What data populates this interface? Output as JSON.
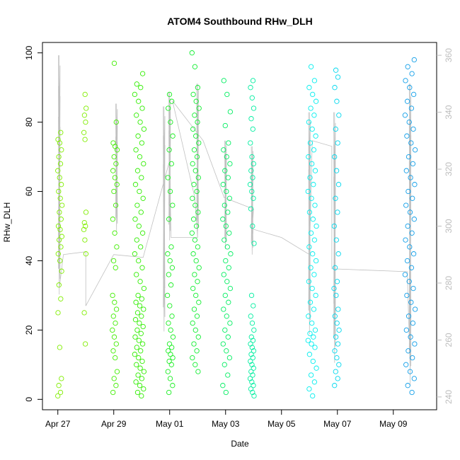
{
  "chart_data": {
    "type": "scatter",
    "title": "ATOM4 Southbound RHw_DLH",
    "xlabel": "Date",
    "ylabel": "RHw_DLH",
    "x_ticks": [
      "Apr 27",
      "Apr 29",
      "May 01",
      "May 03",
      "May 05",
      "May 07",
      "May 09"
    ],
    "x_tick_days": [
      0,
      2,
      4,
      6,
      8,
      10,
      12
    ],
    "xlim_days": [
      -0.55,
      13.55
    ],
    "x_day0": "Apr 27",
    "y_ticks": [
      0,
      20,
      40,
      60,
      80,
      100
    ],
    "ylim": [
      -3,
      103
    ],
    "y2_ticks": [
      240,
      260,
      280,
      300,
      320,
      340,
      360
    ],
    "y2lim": [
      235.5,
      364.5
    ],
    "grid": false,
    "colors": {
      "axis": "#000000",
      "right_axis": "#bdbdbd",
      "line": "#c0c0c0"
    },
    "marker": "open-circle",
    "line_series": {
      "axis": "right",
      "points": [
        [
          0.05,
          278
        ],
        [
          0.2,
          290
        ],
        [
          1.0,
          291
        ],
        [
          1.0,
          272
        ],
        [
          2.0,
          290
        ],
        [
          3.05,
          289
        ],
        [
          4.0,
          323
        ],
        [
          4.05,
          296
        ],
        [
          5.0,
          296
        ],
        [
          4.9,
          310
        ],
        [
          4.1,
          344
        ],
        [
          5.2,
          330
        ],
        [
          5.95,
          310
        ],
        [
          7.0,
          306
        ],
        [
          6.95,
          299
        ],
        [
          8.0,
          296
        ],
        [
          9.0,
          290
        ],
        [
          9.1,
          330
        ],
        [
          9.8,
          328
        ],
        [
          9.8,
          285
        ],
        [
          12.5,
          284
        ],
        [
          12.6,
          250
        ]
      ],
      "spikes": [
        {
          "x": 0.05,
          "lo": 276,
          "hi": 360
        },
        {
          "x": 2.1,
          "lo": 298,
          "hi": 343
        },
        {
          "x": 3.8,
          "lo": 263,
          "hi": 342
        },
        {
          "x": 4.0,
          "lo": 295,
          "hi": 347
        },
        {
          "x": 5.0,
          "lo": 296,
          "hi": 350
        },
        {
          "x": 6.0,
          "lo": 292,
          "hi": 330
        },
        {
          "x": 6.95,
          "lo": 290,
          "hi": 328
        },
        {
          "x": 9.0,
          "lo": 262,
          "hi": 340
        },
        {
          "x": 9.9,
          "lo": 252,
          "hi": 340
        },
        {
          "x": 12.6,
          "lo": 244,
          "hi": 350
        }
      ]
    },
    "series": [
      {
        "color": "#80ee00",
        "days": [
          0.0,
          0.15
        ],
        "values": [
          1,
          2,
          4,
          6,
          15,
          25,
          29,
          33,
          37,
          40,
          42,
          44,
          46,
          47,
          49,
          50,
          52,
          54,
          56,
          58,
          60,
          62,
          64,
          66,
          68,
          70,
          72,
          74,
          75,
          77
        ]
      },
      {
        "color": "#80ee00",
        "days": [
          0.93,
          1.02
        ],
        "values": [
          16,
          25,
          42,
          46,
          49,
          50,
          51,
          54,
          75,
          77,
          80,
          82,
          84,
          88
        ]
      },
      {
        "color": "#40ee00",
        "days": [
          1.95,
          2.12
        ],
        "values": [
          2,
          4,
          6,
          8,
          12,
          14,
          16,
          18,
          20,
          22,
          24,
          26,
          28,
          30,
          38,
          40,
          44,
          48,
          52,
          56,
          60,
          62,
          64,
          66,
          68,
          70,
          72,
          73,
          74,
          80,
          97
        ]
      },
      {
        "color": "#30ee00",
        "days": [
          2.75,
          3.08
        ],
        "values": [
          1,
          2,
          3,
          4,
          5,
          6,
          7,
          8,
          9,
          10,
          11,
          12,
          13,
          14,
          15,
          16,
          17,
          18,
          19,
          20,
          21,
          22,
          23,
          24,
          25,
          26,
          27,
          28,
          29,
          30,
          32,
          34,
          36,
          38,
          40,
          42,
          44,
          46,
          48,
          50,
          52,
          54,
          56,
          58,
          60,
          62,
          64,
          66,
          68,
          70,
          72,
          74,
          76,
          78,
          80,
          82,
          84,
          86,
          88,
          90,
          91,
          94
        ]
      },
      {
        "color": "#18ee20",
        "days": [
          3.92,
          4.12
        ],
        "values": [
          2,
          4,
          6,
          8,
          10,
          11,
          12,
          13,
          14,
          15,
          16,
          18,
          20,
          22,
          24,
          27,
          30,
          33,
          36,
          38,
          40,
          42,
          44,
          52,
          56,
          60,
          64,
          68,
          72,
          76,
          80,
          84,
          86,
          88
        ]
      },
      {
        "color": "#10ee30",
        "days": [
          4.8,
          5.05
        ],
        "values": [
          8,
          10,
          12,
          14,
          16,
          18,
          20,
          22,
          24,
          26,
          28,
          30,
          32,
          34,
          36,
          38,
          40,
          42,
          44,
          46,
          48,
          50,
          52,
          54,
          56,
          58,
          60,
          62,
          64,
          66,
          68,
          70,
          72,
          74,
          76,
          78,
          80,
          82,
          84,
          86,
          88,
          90,
          96,
          100
        ]
      },
      {
        "color": "#00ee60",
        "days": [
          5.9,
          6.18
        ],
        "values": [
          2,
          4,
          7,
          10,
          12,
          14,
          16,
          18,
          20,
          22,
          24,
          26,
          28,
          30,
          32,
          34,
          36,
          38,
          40,
          42,
          44,
          46,
          48,
          50,
          52,
          54,
          56,
          58,
          60,
          62,
          64,
          66,
          68,
          70,
          72,
          74,
          79,
          83,
          88,
          92
        ]
      },
      {
        "color": "#00eea0",
        "days": [
          6.88,
          7.02
        ],
        "values": [
          1,
          2,
          3,
          4,
          5,
          6,
          7,
          8,
          9,
          10,
          11,
          12,
          13,
          14,
          15,
          16,
          17,
          18,
          20,
          22,
          24,
          27,
          30,
          45,
          50,
          55,
          58,
          60,
          62,
          64,
          66,
          68,
          70,
          74,
          78,
          81,
          84,
          87,
          90,
          92
        ]
      },
      {
        "color": "#00eeee",
        "days": [
          8.95,
          9.25
        ],
        "values": [
          1,
          3,
          5,
          7,
          9,
          11,
          13,
          15,
          16,
          17,
          18,
          19,
          20,
          22,
          24,
          26,
          28,
          30,
          32,
          34,
          36,
          38,
          40,
          42,
          44,
          46,
          48,
          50,
          52,
          54,
          56,
          58,
          60,
          62,
          64,
          66,
          68,
          70,
          72,
          74,
          76,
          78,
          80,
          82,
          84,
          86,
          88,
          90,
          92,
          96
        ]
      },
      {
        "color": "#00d8ee",
        "days": [
          9.88,
          10.06
        ],
        "values": [
          4,
          6,
          8,
          10,
          12,
          14,
          16,
          18,
          20,
          22,
          24,
          26,
          30,
          32,
          34,
          38,
          42,
          46,
          50,
          54,
          58,
          62,
          66,
          70,
          74,
          78,
          82,
          86,
          90,
          93,
          95
        ]
      },
      {
        "color": "#109ee8",
        "days": [
          12.42,
          12.78
        ],
        "values": [
          2,
          4,
          6,
          8,
          10,
          12,
          14,
          16,
          18,
          20,
          22,
          24,
          26,
          28,
          30,
          32,
          34,
          36,
          38,
          40,
          42,
          44,
          46,
          48,
          50,
          52,
          54,
          56,
          58,
          60,
          62,
          64,
          66,
          68,
          70,
          72,
          74,
          76,
          78,
          80,
          82,
          84,
          86,
          88,
          90,
          92,
          94,
          96,
          98
        ]
      }
    ]
  }
}
